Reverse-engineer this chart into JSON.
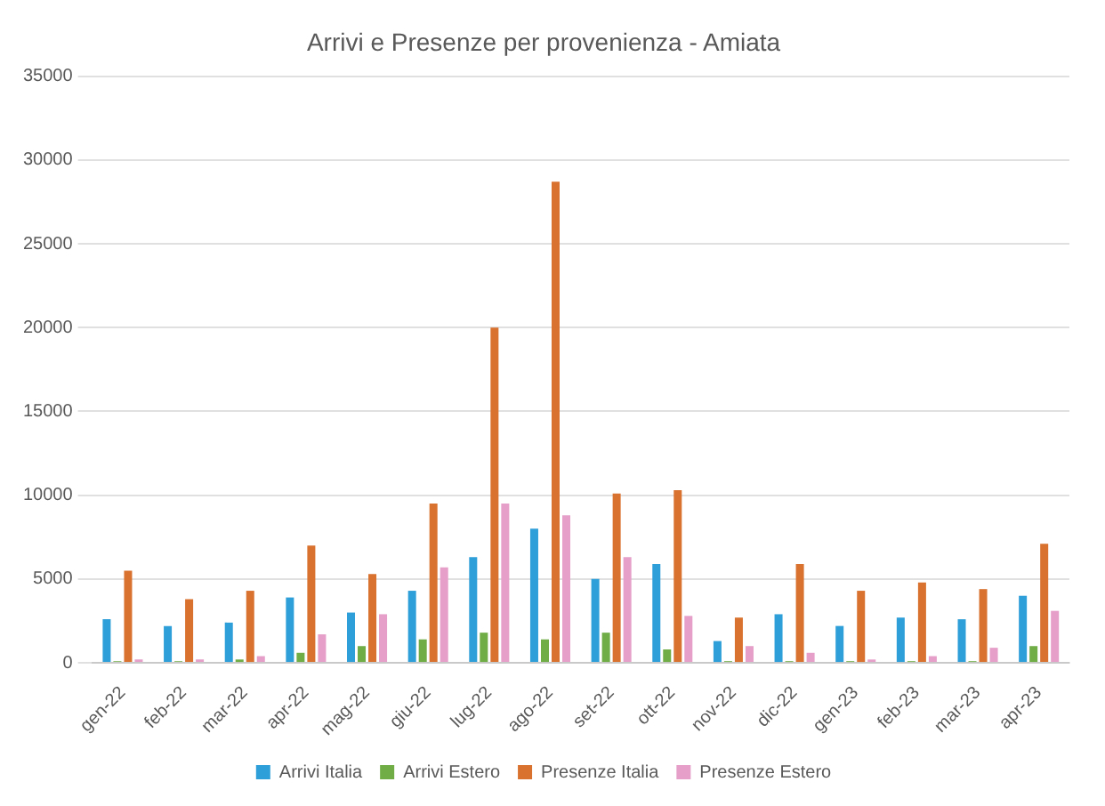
{
  "chart_data": {
    "type": "bar",
    "title": "Arrivi e Presenze per provenienza - Amiata",
    "categories": [
      "gen-22",
      "feb-22",
      "mar-22",
      "apr-22",
      "mag-22",
      "giu-22",
      "lug-22",
      "ago-22",
      "set-22",
      "ott-22",
      "nov-22",
      "dic-22",
      "gen-23",
      "feb-23",
      "mar-23",
      "apr-23"
    ],
    "series": [
      {
        "name": "Arrivi Italia",
        "color": "#2e9fd8",
        "values": [
          2600,
          2200,
          2400,
          3900,
          3000,
          4300,
          6300,
          8000,
          5000,
          5900,
          1300,
          2900,
          2200,
          2700,
          2600,
          4000
        ]
      },
      {
        "name": "Arrivi Estero",
        "color": "#70ad47",
        "values": [
          100,
          100,
          200,
          600,
          1000,
          1400,
          1800,
          1400,
          1800,
          800,
          100,
          100,
          100,
          100,
          100,
          1000
        ]
      },
      {
        "name": "Presenze Italia",
        "color": "#d9722e",
        "values": [
          5500,
          3800,
          4300,
          7000,
          5300,
          9500,
          20000,
          28700,
          10100,
          10300,
          2700,
          5900,
          4300,
          4800,
          4400,
          7100
        ]
      },
      {
        "name": "Presenze Estero",
        "color": "#e59fc8",
        "values": [
          200,
          200,
          400,
          1700,
          2900,
          5700,
          9500,
          8800,
          6300,
          2800,
          1000,
          600,
          200,
          400,
          900,
          3100
        ]
      }
    ],
    "ylim": [
      0,
      35000
    ],
    "yticks": [
      0,
      5000,
      10000,
      15000,
      20000,
      25000,
      30000,
      35000
    ],
    "grid": "y",
    "legend": "bottom"
  }
}
